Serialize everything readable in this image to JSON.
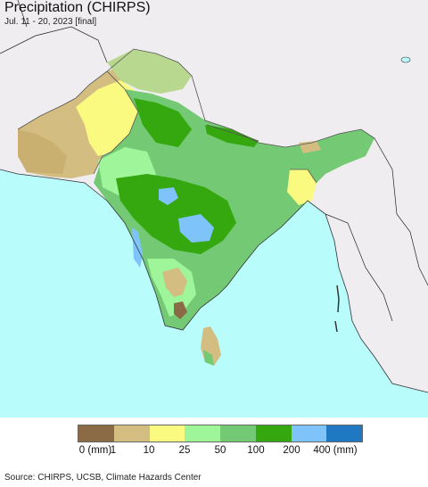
{
  "header": {
    "title": "Precipitation (CHIRPS)",
    "subtitle": "Jul. 11 - 20, 2023 [final]"
  },
  "legend": {
    "unit_label": "(mm)",
    "bins": [
      {
        "color": "#8b6a46"
      },
      {
        "color": "#d3bd80"
      },
      {
        "color": "#fbfa80"
      },
      {
        "color": "#9ef59a"
      },
      {
        "color": "#74ca74"
      },
      {
        "color": "#34a80e"
      },
      {
        "color": "#7ec3fa"
      },
      {
        "color": "#2178c2"
      }
    ],
    "ticks": [
      "0",
      "1",
      "10",
      "25",
      "50",
      "100",
      "200",
      "400"
    ],
    "tick_suffix_first": "(mm)",
    "tick_suffix_last": "(mm)"
  },
  "map": {
    "ocean_color": "#b9fcfc",
    "outside_color": "#f0edf0"
  },
  "footer": {
    "source": "Source: CHIRPS, UCSB, Climate Hazards Center"
  }
}
